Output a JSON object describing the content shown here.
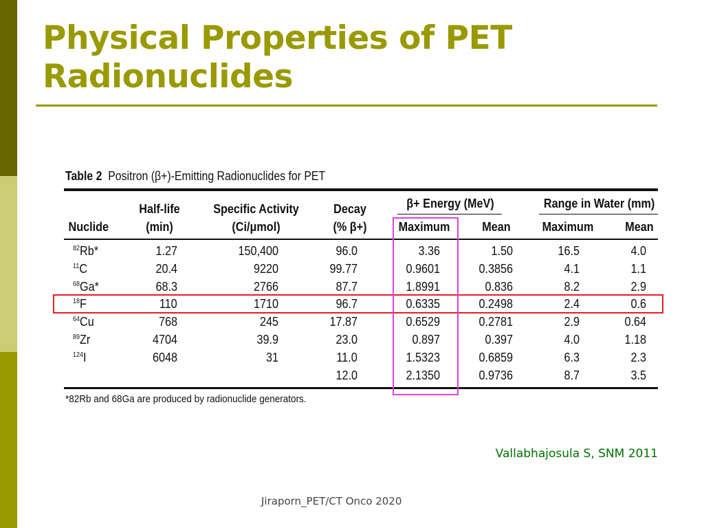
{
  "title": "Physical Properties of PET Radionuclides",
  "table": {
    "caption_label": "Table 2",
    "caption": "Positron (β+)-Emitting Radionuclides for PET",
    "group_headers": {
      "energy": "β+ Energy (MeV)",
      "range": "Range in Water (mm)"
    },
    "headers": [
      "Nuclide",
      "Half-life (min)",
      "Specific Activity (Ci/μmol)",
      "Decay (% β+)",
      "Maximum",
      "Mean",
      "Maximum",
      "Mean"
    ],
    "rows": [
      {
        "mass": "82",
        "el": "Rb*",
        "half": "1.27",
        "sa": "150,400",
        "decay": "96.0",
        "emax": "3.36",
        "emean": "1.50",
        "rmax": "16.5",
        "rmean": "4.0"
      },
      {
        "mass": "11",
        "el": "C",
        "half": "20.4",
        "sa": "9220",
        "decay": "99.77",
        "emax": "0.9601",
        "emean": "0.3856",
        "rmax": "4.1",
        "rmean": "1.1"
      },
      {
        "mass": "68",
        "el": "Ga*",
        "half": "68.3",
        "sa": "2766",
        "decay": "87.7",
        "emax": "1.8991",
        "emean": "0.836",
        "rmax": "8.2",
        "rmean": "2.9"
      },
      {
        "mass": "18",
        "el": "F",
        "half": "110",
        "sa": "1710",
        "decay": "96.7",
        "emax": "0.6335",
        "emean": "0.2498",
        "rmax": "2.4",
        "rmean": "0.6"
      },
      {
        "mass": "64",
        "el": "Cu",
        "half": "768",
        "sa": "245",
        "decay": "17.87",
        "emax": "0.6529",
        "emean": "0.2781",
        "rmax": "2.9",
        "rmean": "0.64"
      },
      {
        "mass": "89",
        "el": "Zr",
        "half": "4704",
        "sa": "39.9",
        "decay": "23.0",
        "emax": "0.897",
        "emean": "0.397",
        "rmax": "4.0",
        "rmean": "1.18"
      },
      {
        "mass": "124",
        "el": "I",
        "half": "6048",
        "sa": "31",
        "decay": "11.0",
        "emax": "1.5323",
        "emean": "0.6859",
        "rmax": "6.3",
        "rmean": "2.3"
      },
      {
        "mass": "",
        "el": "",
        "half": "",
        "sa": "",
        "decay": "12.0",
        "emax": "2.1350",
        "emean": "0.9736",
        "rmax": "8.7",
        "rmean": "3.5"
      }
    ],
    "footnote": "*82Rb and 68Ga are produced by radionuclide generators."
  },
  "citation": "Vallabhajosula S, SNM 2011",
  "footer": "Jiraporn_PET/CT Onco 2020",
  "colors": {
    "accent": "#999900",
    "dark": "#666600",
    "light": "#cccc77",
    "highlight_row": "#e02020",
    "highlight_col": "#e040e0"
  }
}
